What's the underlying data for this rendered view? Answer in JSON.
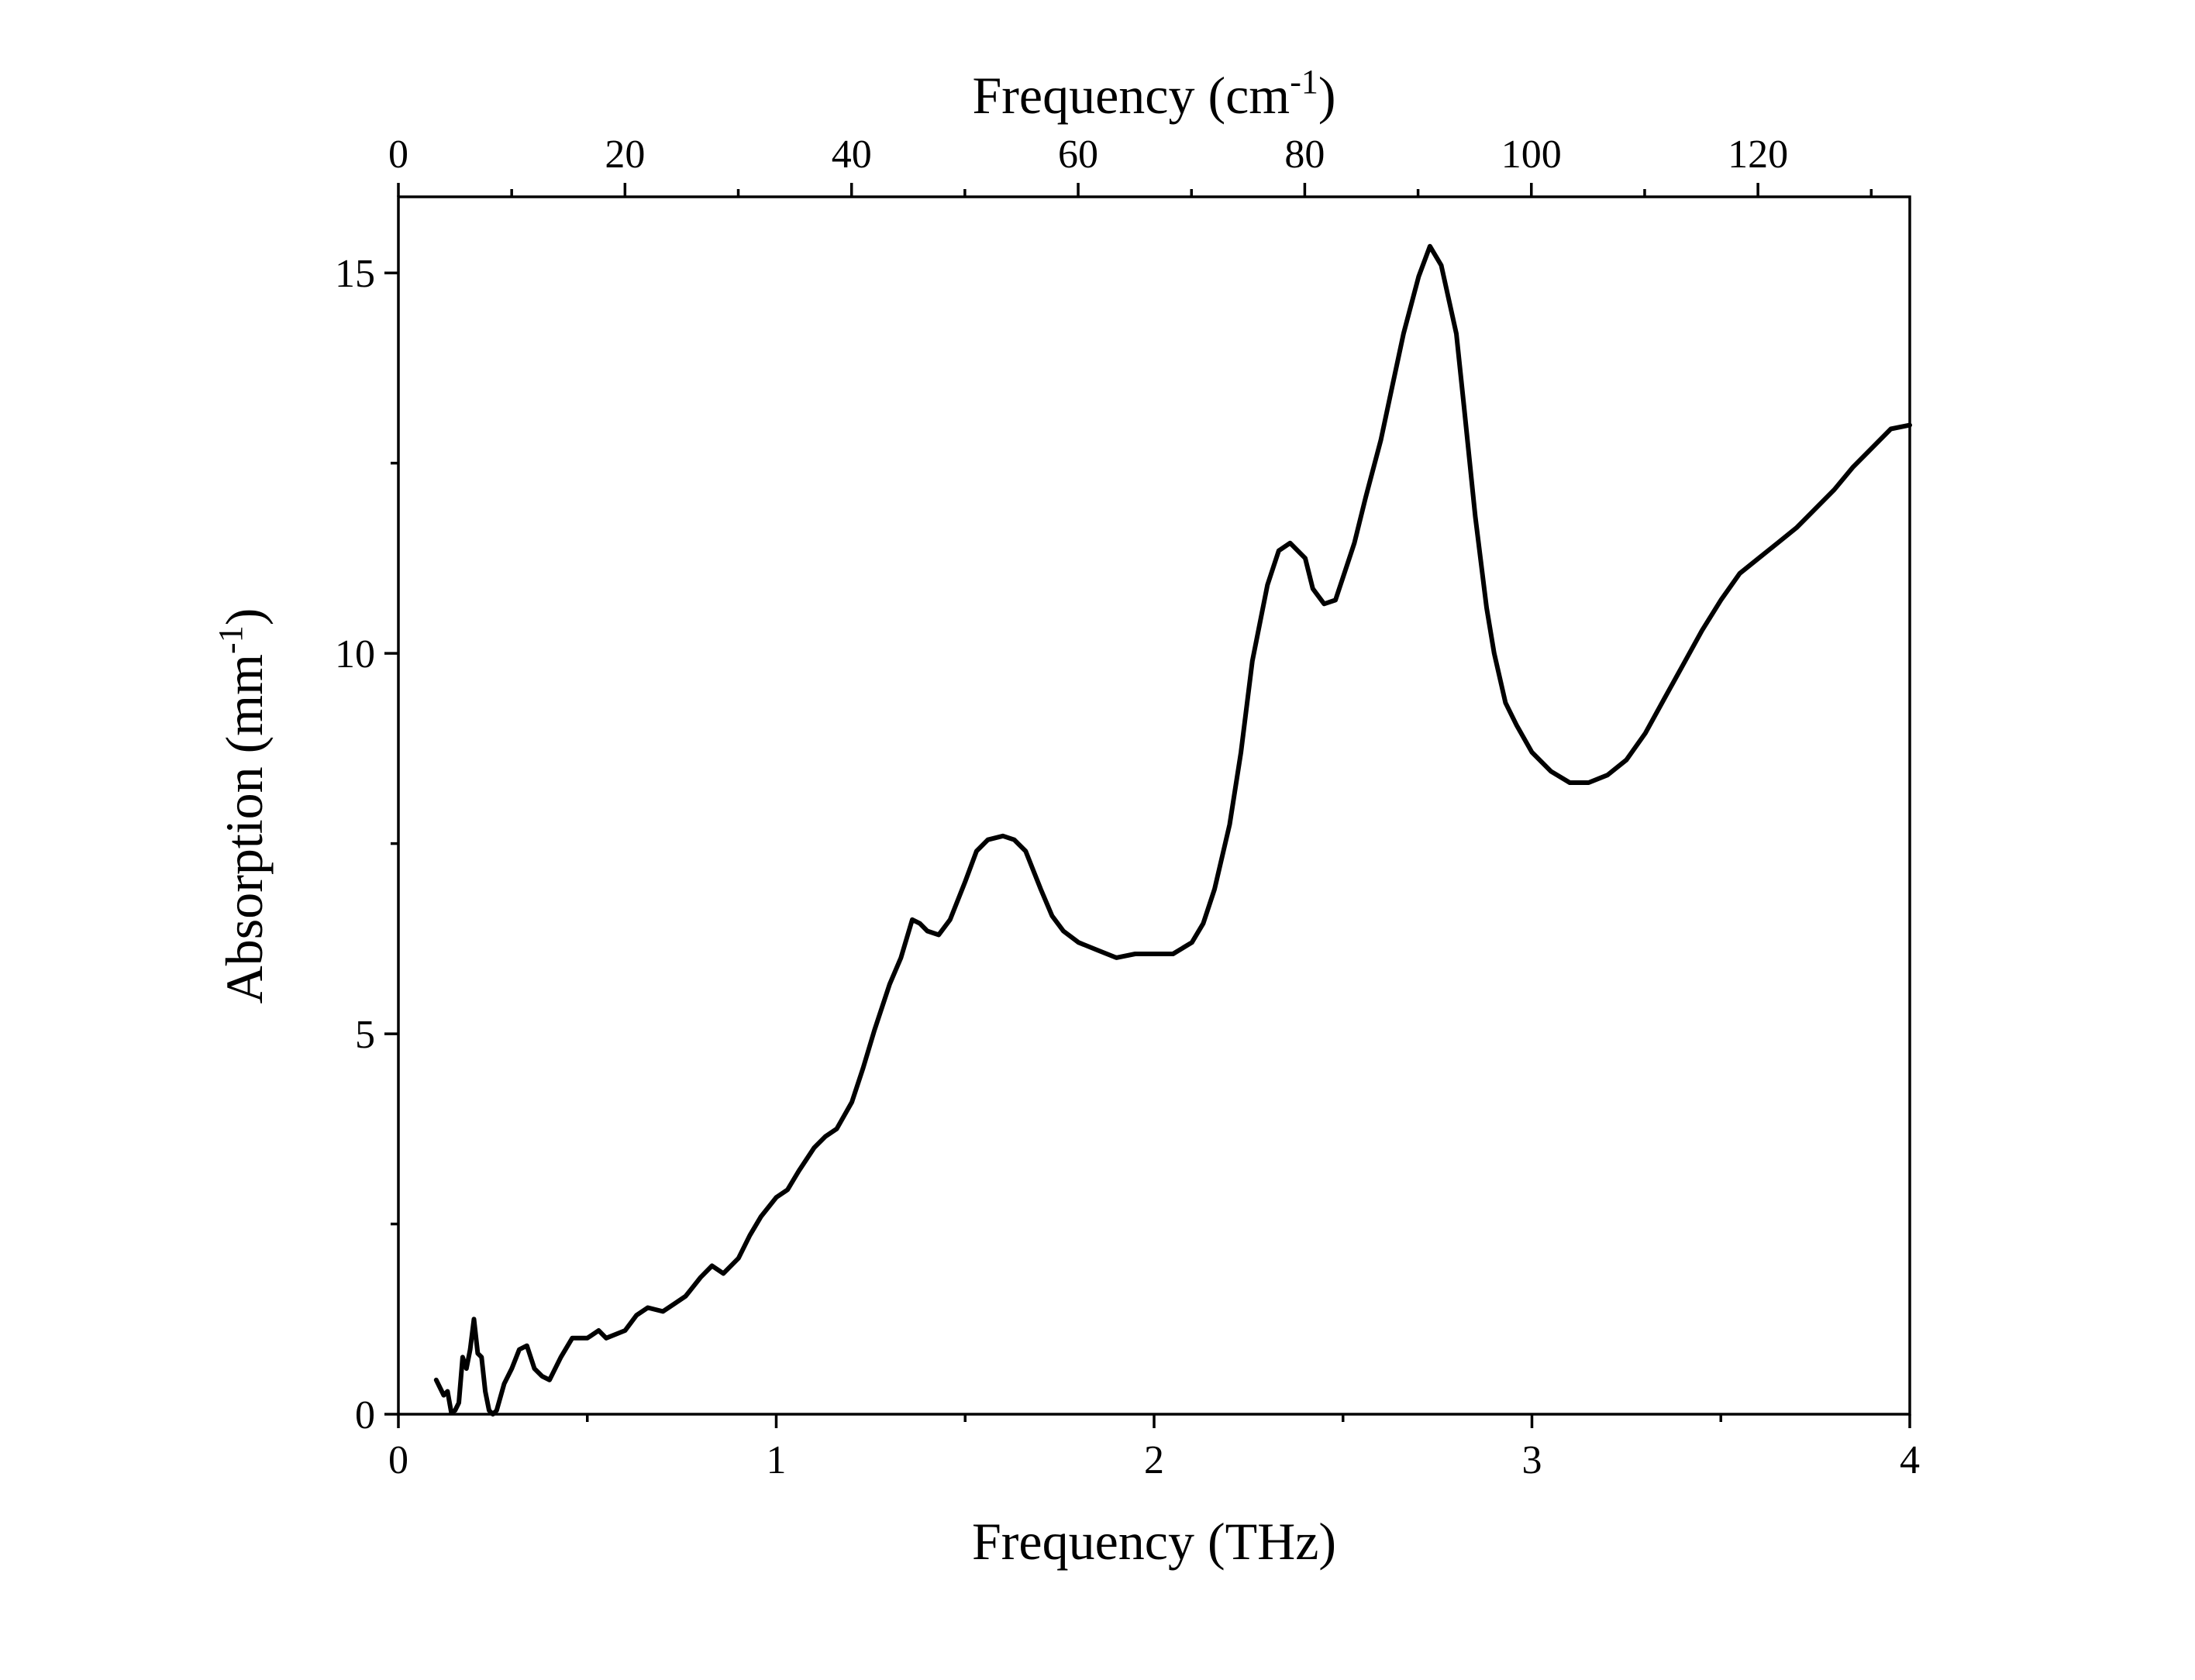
{
  "chart_data": {
    "type": "line",
    "title": "",
    "xlabel": "Frequency (THz)",
    "ylabel": {
      "text": "Absorption (mm",
      "sup": "-1",
      "tail": ")"
    },
    "x2label": {
      "text": "Frequency (cm",
      "sup": "-1",
      "tail": ")"
    },
    "xlim": [
      0,
      4
    ],
    "ylim": [
      0,
      16
    ],
    "x2lim": [
      0,
      133.4
    ],
    "xticks": [
      0,
      1,
      2,
      3,
      4
    ],
    "xticks_minor": [
      0.5,
      1.5,
      2.5,
      3.5
    ],
    "yticks": [
      0,
      5,
      10,
      15
    ],
    "yticks_minor": [
      2.5,
      7.5,
      12.5
    ],
    "x2ticks": [
      0,
      20,
      40,
      60,
      80,
      100,
      120
    ],
    "x2ticks_minor": [
      10,
      30,
      50,
      70,
      90,
      110,
      130
    ],
    "grid": false,
    "legend": false,
    "series": [
      {
        "color": "#000000",
        "x": [
          0.1,
          0.12,
          0.13,
          0.14,
          0.15,
          0.16,
          0.17,
          0.18,
          0.19,
          0.2,
          0.21,
          0.22,
          0.23,
          0.24,
          0.25,
          0.26,
          0.28,
          0.3,
          0.32,
          0.34,
          0.36,
          0.38,
          0.4,
          0.43,
          0.46,
          0.48,
          0.5,
          0.53,
          0.55,
          0.6,
          0.63,
          0.66,
          0.7,
          0.73,
          0.76,
          0.8,
          0.83,
          0.86,
          0.9,
          0.93,
          0.96,
          1.0,
          1.03,
          1.06,
          1.1,
          1.13,
          1.16,
          1.2,
          1.23,
          1.26,
          1.3,
          1.33,
          1.36,
          1.38,
          1.4,
          1.43,
          1.46,
          1.5,
          1.53,
          1.56,
          1.6,
          1.63,
          1.66,
          1.7,
          1.73,
          1.76,
          1.8,
          1.85,
          1.9,
          1.95,
          2.0,
          2.05,
          2.1,
          2.13,
          2.16,
          2.2,
          2.23,
          2.26,
          2.3,
          2.33,
          2.36,
          2.4,
          2.42,
          2.45,
          2.48,
          2.5,
          2.53,
          2.56,
          2.6,
          2.63,
          2.66,
          2.7,
          2.73,
          2.76,
          2.8,
          2.82,
          2.85,
          2.88,
          2.9,
          2.93,
          2.96,
          3.0,
          3.05,
          3.1,
          3.15,
          3.2,
          3.25,
          3.3,
          3.35,
          3.4,
          3.45,
          3.5,
          3.55,
          3.6,
          3.65,
          3.7,
          3.75,
          3.8,
          3.85,
          3.9,
          3.95,
          4.0
        ],
        "values": [
          0.45,
          0.25,
          0.3,
          0.02,
          0.05,
          0.15,
          0.75,
          0.6,
          0.85,
          1.25,
          0.8,
          0.75,
          0.3,
          0.05,
          0.0,
          0.05,
          0.4,
          0.6,
          0.85,
          0.9,
          0.6,
          0.5,
          0.45,
          0.75,
          1.0,
          1.0,
          1.0,
          1.1,
          1.0,
          1.1,
          1.3,
          1.4,
          1.35,
          1.45,
          1.55,
          1.8,
          1.95,
          1.85,
          2.05,
          2.35,
          2.6,
          2.85,
          2.95,
          3.2,
          3.5,
          3.65,
          3.75,
          4.1,
          4.55,
          5.05,
          5.65,
          6.0,
          6.5,
          6.45,
          6.35,
          6.3,
          6.5,
          7.0,
          7.4,
          7.55,
          7.6,
          7.55,
          7.4,
          6.9,
          6.55,
          6.35,
          6.2,
          6.1,
          6.0,
          6.05,
          6.05,
          6.05,
          6.2,
          6.45,
          6.9,
          7.75,
          8.7,
          9.9,
          10.9,
          11.35,
          11.45,
          11.25,
          10.85,
          10.65,
          10.7,
          11.0,
          11.45,
          12.05,
          12.8,
          13.5,
          14.2,
          14.95,
          15.35,
          15.1,
          14.2,
          13.25,
          11.8,
          10.6,
          10.0,
          9.35,
          9.05,
          8.7,
          8.45,
          8.3,
          8.3,
          8.4,
          8.6,
          8.95,
          9.4,
          9.85,
          10.3,
          10.7,
          11.05,
          11.25,
          11.45,
          11.65,
          11.9,
          12.15,
          12.45,
          12.7,
          12.95,
          13.0
        ]
      }
    ]
  }
}
